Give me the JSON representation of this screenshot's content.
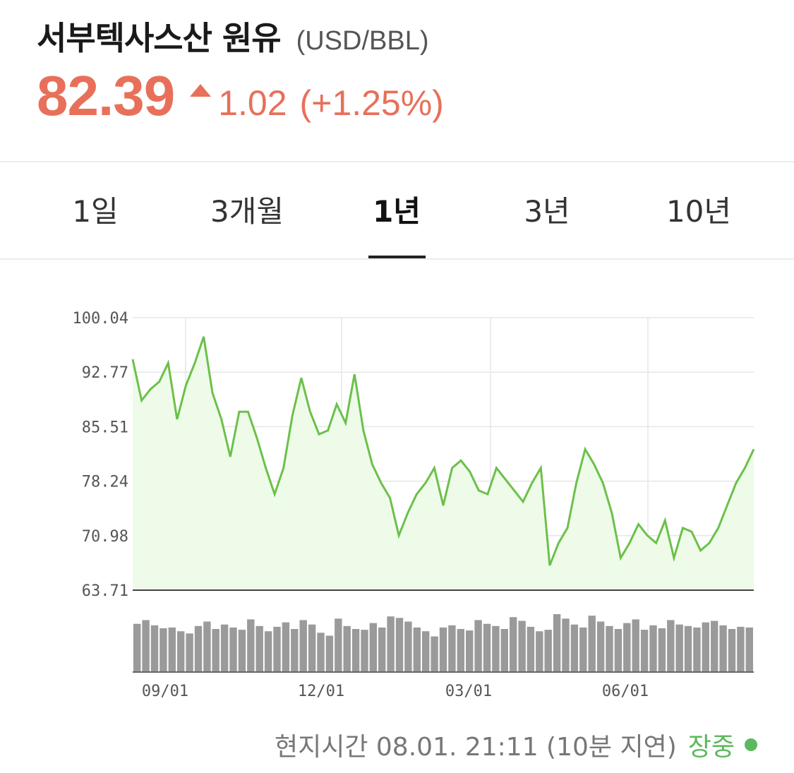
{
  "header": {
    "title": "서부텍사스산 원유",
    "unit": "(USD/BBL)",
    "price": "82.39",
    "change": "1.02",
    "change_pct": "(+1.25%)"
  },
  "tabs": [
    {
      "label": "1일",
      "active": false
    },
    {
      "label": "3개월",
      "active": false
    },
    {
      "label": "1년",
      "active": true
    },
    {
      "label": "3년",
      "active": false
    },
    {
      "label": "10년",
      "active": false
    }
  ],
  "chart_data": {
    "type": "area",
    "y_ticks": [
      "100.04",
      "92.77",
      "85.51",
      "78.24",
      "70.98",
      "63.71"
    ],
    "ylim": [
      63.71,
      100.04
    ],
    "x_ticks": [
      "09/01",
      "12/01",
      "03/01",
      "06/01"
    ],
    "line_color": "#6cc04a",
    "fill_color": "#eefbe9",
    "grid": true,
    "series": [
      {
        "values": [
          94.5,
          89.0,
          90.5,
          91.5,
          94.0,
          86.5,
          91.0,
          94.0,
          97.5,
          90.0,
          86.5,
          81.5,
          87.5,
          87.5,
          84.0,
          80.0,
          76.5,
          80.0,
          87.0,
          92.0,
          87.5,
          84.5,
          85.0,
          88.5,
          86.0,
          92.5,
          85.0,
          80.5,
          78.0,
          76.0,
          71.0,
          74.0,
          76.5,
          78.0,
          80.0,
          75.0,
          80.0,
          81.0,
          79.5,
          77.0,
          76.5,
          80.0,
          78.5,
          77.0,
          75.5,
          78.0,
          80.0,
          67.0,
          70.0,
          72.0,
          78.0,
          82.5,
          80.5,
          78.0,
          74.0,
          68.0,
          70.0,
          72.5,
          71.0,
          70.0,
          73.0,
          68.0,
          72.0,
          71.5,
          69.0,
          70.0,
          72.0,
          75.0,
          78.0,
          80.0,
          82.5
        ]
      }
    ],
    "volume": {
      "color": "#9a9a9a",
      "values": [
        65,
        70,
        63,
        59,
        60,
        55,
        52,
        62,
        68,
        58,
        64,
        60,
        57,
        71,
        62,
        55,
        61,
        67,
        58,
        70,
        64,
        53,
        49,
        72,
        62,
        58,
        57,
        66,
        60,
        75,
        73,
        68,
        60,
        55,
        48,
        60,
        63,
        58,
        56,
        70,
        65,
        62,
        58,
        74,
        69,
        61,
        55,
        57,
        78,
        72,
        64,
        60,
        76,
        68,
        62,
        58,
        66,
        71,
        57,
        63,
        59,
        70,
        64,
        62,
        60,
        67,
        69,
        63,
        58,
        61,
        60
      ]
    }
  },
  "footer": {
    "time_text": "현지시간 08.01. 21:11 (10분 지연)",
    "status": "장중",
    "status_color": "#5cb85c"
  }
}
